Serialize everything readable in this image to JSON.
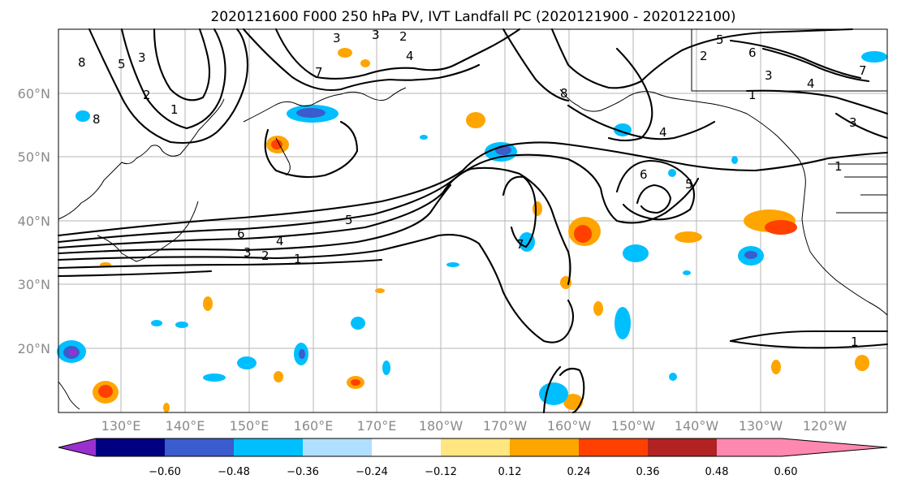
{
  "figure": {
    "title": "2020121600 F000 250 hPa PV, IVT Landfall PC (2020121900 - 2020122100)"
  },
  "map": {
    "lon_labels": [
      "130°E",
      "140°E",
      "150°E",
      "160°E",
      "170°E",
      "180°W",
      "170°W",
      "160°W",
      "150°W",
      "140°W",
      "130°W",
      "120°W"
    ],
    "lat_labels": [
      "60°N",
      "50°N",
      "40°N",
      "30°N",
      "20°N"
    ],
    "contour_labels": [
      "8",
      "5",
      "3",
      "2",
      "1",
      "8",
      "3",
      "3",
      "2",
      "4",
      "7",
      "5",
      "6",
      "2",
      "3",
      "4",
      "7",
      "1",
      "8",
      "4",
      "6",
      "5",
      "3",
      "1",
      "6",
      "3",
      "4",
      "5",
      "2",
      "1",
      "1",
      "7"
    ]
  },
  "colorbar": {
    "colors": [
      "#9b30d0",
      "#000080",
      "#3a5ccc",
      "#00bfff",
      "#b0e0ff",
      "#ffffff",
      "#ffe680",
      "#ffa500",
      "#ff4000",
      "#b22222",
      "#ff88b0"
    ],
    "tick_labels": [
      "−0.60",
      "−0.48",
      "−0.36",
      "−0.24",
      "−0.12",
      "0.12",
      "0.24",
      "0.36",
      "0.48",
      "0.60"
    ]
  }
}
